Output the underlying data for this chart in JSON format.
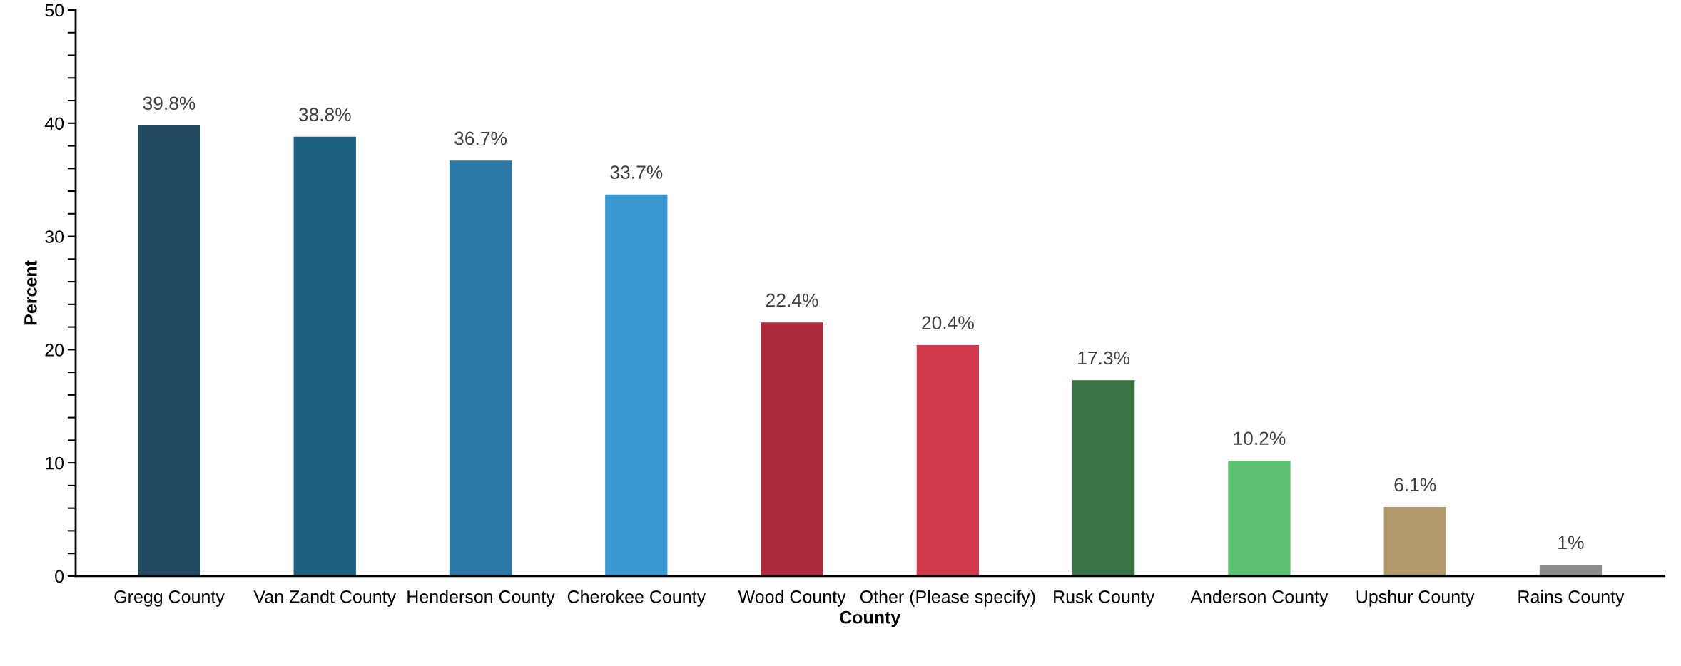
{
  "chart_data": {
    "type": "bar",
    "xlabel": "County",
    "ylabel": "Percent",
    "categories": [
      "Gregg County",
      "Van Zandt County",
      "Henderson County",
      "Cherokee County",
      "Wood County",
      "Other (Please specify)",
      "Rusk County",
      "Anderson County",
      "Upshur County",
      "Rains County"
    ],
    "values": [
      39.8,
      38.8,
      36.7,
      33.7,
      22.4,
      20.4,
      17.3,
      10.2,
      6.1,
      1
    ],
    "value_labels": [
      "39.8%",
      "38.8%",
      "36.7%",
      "33.7%",
      "22.4%",
      "20.4%",
      "17.3%",
      "10.2%",
      "6.1%",
      "1%"
    ],
    "colors": [
      "#1f4a61",
      "#1f5f82",
      "#2a77a8",
      "#3a98d3",
      "#ab2b3a",
      "#cf3a4f",
      "#3a7344",
      "#5ec071",
      "#b19a6e",
      "#8c8c8c"
    ],
    "ylim": [
      0,
      50
    ],
    "yticks": [
      0,
      {
        "value": 2,
        "label": null
      },
      {
        "value": 4,
        "label": null
      },
      {
        "value": 6,
        "label": null
      },
      {
        "value": 8,
        "label": null
      },
      10,
      {
        "value": 12,
        "label": null
      },
      {
        "value": 14,
        "label": null
      },
      {
        "value": 16,
        "label": null
      },
      {
        "value": 18,
        "label": null
      },
      20,
      {
        "value": 22,
        "label": null
      },
      {
        "value": 24,
        "label": null
      },
      {
        "value": 26,
        "label": null
      },
      {
        "value": 28,
        "label": null
      },
      30,
      {
        "value": 32,
        "label": null
      },
      {
        "value": 34,
        "label": null
      },
      {
        "value": 36,
        "label": null
      },
      {
        "value": 38,
        "label": null
      },
      40,
      {
        "value": 42,
        "label": null
      },
      {
        "value": 44,
        "label": null
      },
      {
        "value": 46,
        "label": null
      },
      {
        "value": 48,
        "label": null
      },
      50
    ],
    "grid": false,
    "legend": false
  }
}
